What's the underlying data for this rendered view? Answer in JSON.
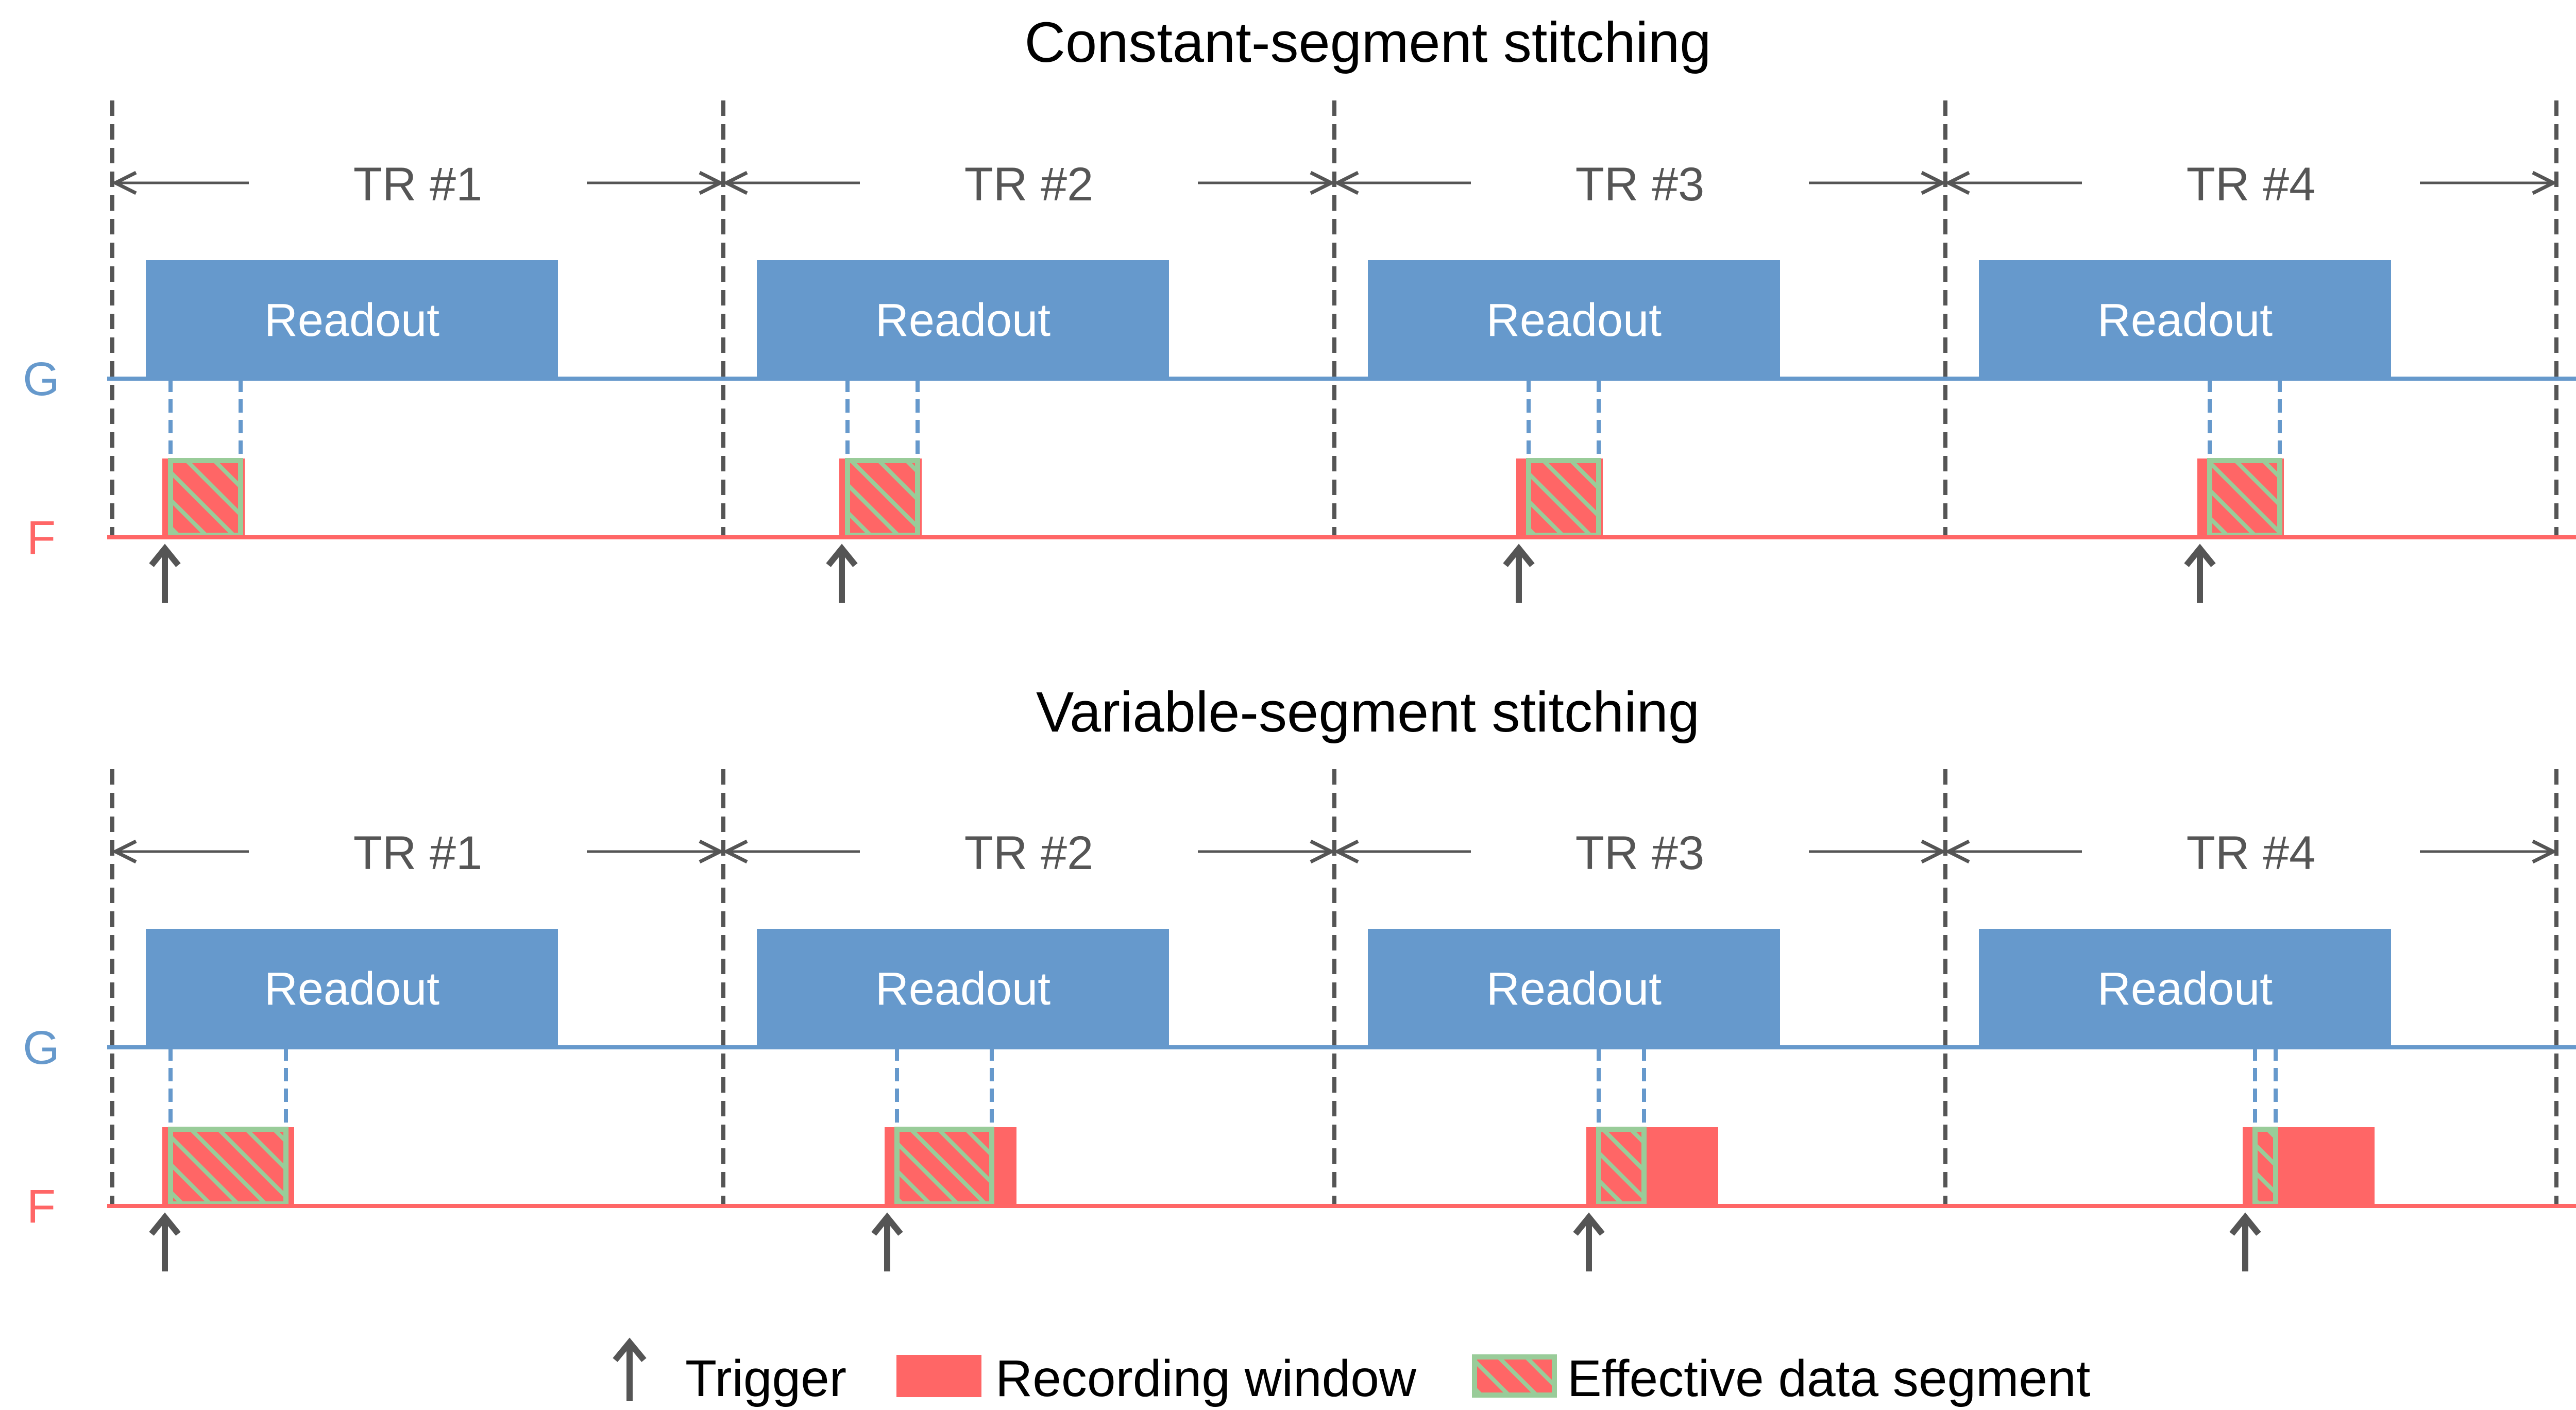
{
  "colors": {
    "gradient": "#6699cc",
    "rf": "#ff6666",
    "hatch": "#99cc99",
    "line": "#555555",
    "text": "#000000",
    "tr_text": "#555555"
  },
  "row_labels": {
    "g": "G",
    "f": "F"
  },
  "readout_label": "Readout",
  "ellipsis": "···",
  "panels": [
    {
      "title": "Constant-segment stitching",
      "trs": [
        {
          "label": "TR #1",
          "rec_offset": 0.04,
          "rec_len": 0.2,
          "eff_offset": 0.06,
          "eff_len": 0.17
        },
        {
          "label": "TR #2",
          "rec_offset": 0.2,
          "rec_len": 0.2,
          "eff_offset": 0.22,
          "eff_len": 0.17
        },
        {
          "label": "TR #3",
          "rec_offset": 0.36,
          "rec_len": 0.21,
          "eff_offset": 0.39,
          "eff_len": 0.17
        },
        {
          "label": "TR #4",
          "rec_offset": 0.53,
          "rec_len": 0.21,
          "eff_offset": 0.56,
          "eff_len": 0.17
        }
      ]
    },
    {
      "title": "Variable-segment stitching",
      "trs": [
        {
          "label": "TR #1",
          "rec_offset": 0.04,
          "rec_len": 0.32,
          "eff_offset": 0.06,
          "eff_len": 0.28
        },
        {
          "label": "TR #2",
          "rec_offset": 0.31,
          "rec_len": 0.32,
          "eff_offset": 0.34,
          "eff_len": 0.23
        },
        {
          "label": "TR #3",
          "rec_offset": 0.53,
          "rec_len": 0.32,
          "eff_offset": 0.56,
          "eff_len": 0.11
        },
        {
          "label": "TR #4",
          "rec_offset": 0.64,
          "rec_len": 0.32,
          "eff_offset": 0.67,
          "eff_len": 0.05
        }
      ]
    }
  ],
  "legend": {
    "trigger": "Trigger",
    "recording": "Recording window",
    "effective": "Effective data segment"
  }
}
